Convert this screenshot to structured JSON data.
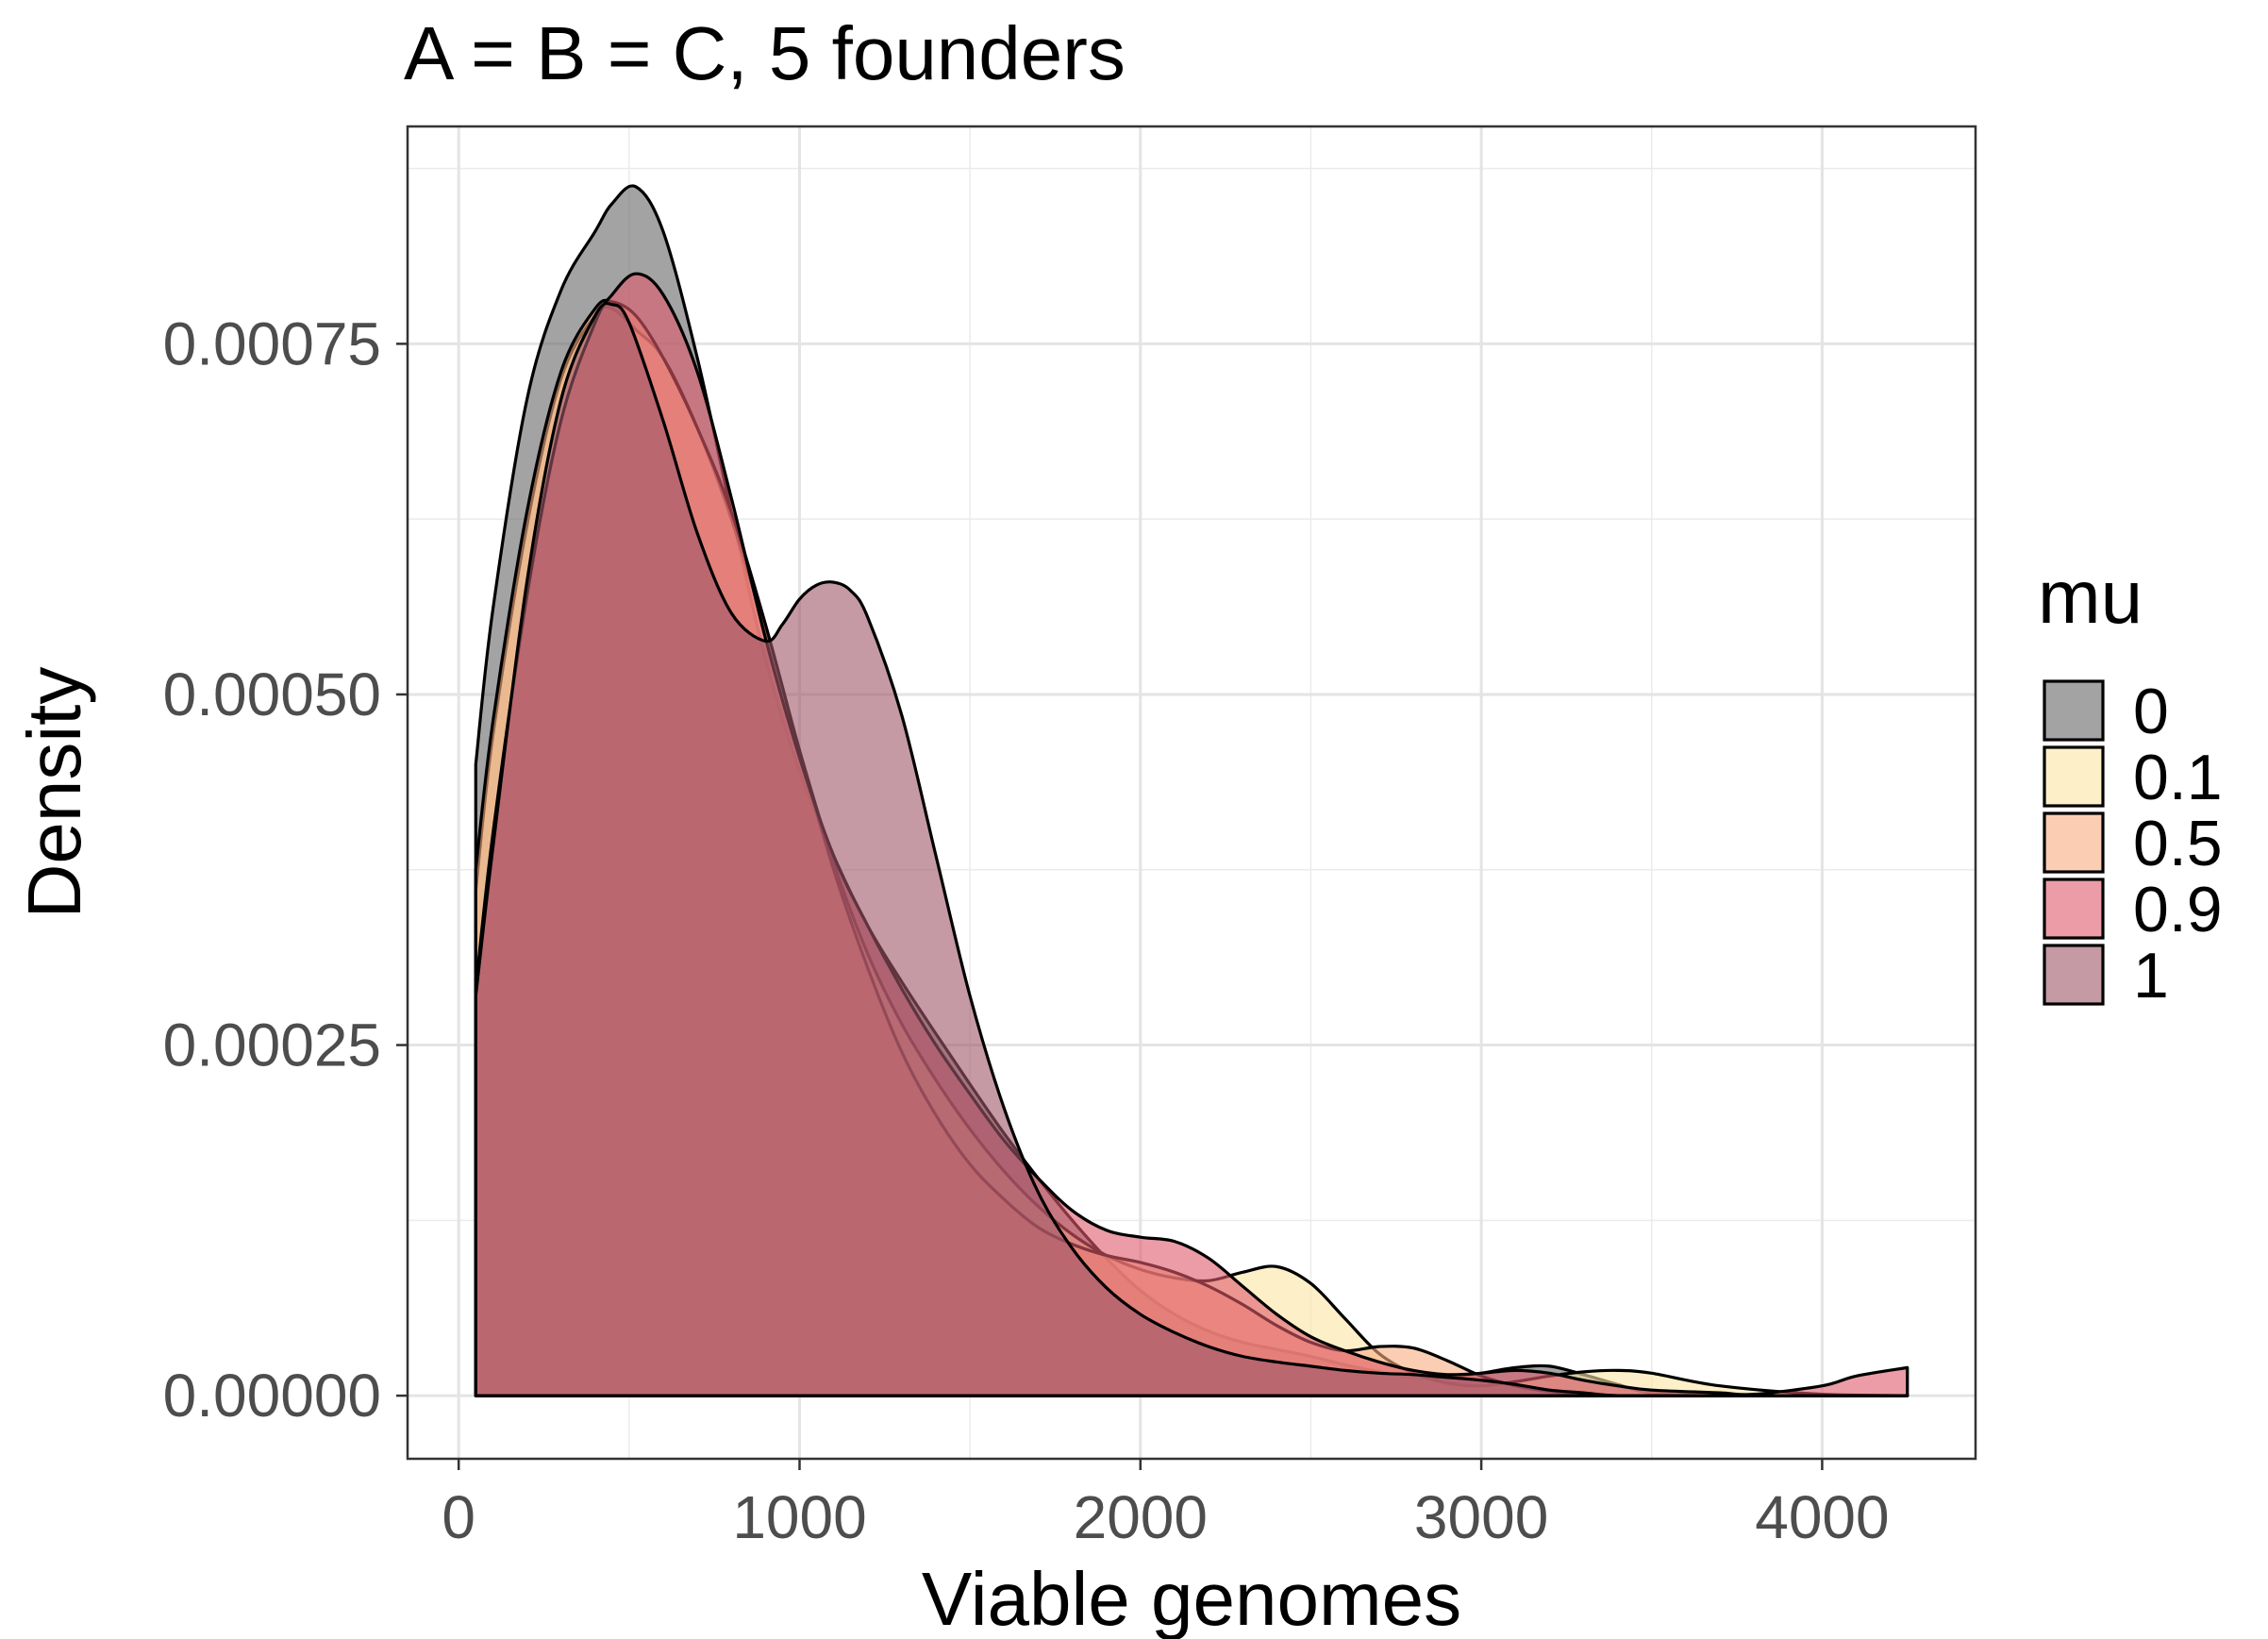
{
  "chart_data": {
    "type": "area",
    "title": "A = B = C, 5 founders",
    "xlabel": "Viable genomes",
    "ylabel": "Density",
    "xlim": [
      -150,
      4450
    ],
    "ylim": [
      -4.5e-05,
      0.000905
    ],
    "x_ticks": [
      {
        "value": 0,
        "label": "0"
      },
      {
        "value": 1000,
        "label": "1000"
      },
      {
        "value": 2000,
        "label": "2000"
      },
      {
        "value": 3000,
        "label": "3000"
      },
      {
        "value": 4000,
        "label": "4000"
      }
    ],
    "x_minor": [
      500,
      1500,
      2500,
      3500
    ],
    "y_ticks": [
      {
        "value": 0,
        "label": "0.00000"
      },
      {
        "value": 0.00025,
        "label": "0.00025"
      },
      {
        "value": 0.0005,
        "label": "0.00050"
      },
      {
        "value": 0.00075,
        "label": "0.00075"
      }
    ],
    "y_minor": [
      0.000125,
      0.000375,
      0.000625,
      0.000875
    ],
    "grid": true,
    "legend": {
      "title": "mu",
      "position": "right"
    },
    "series": [
      {
        "name": "0",
        "color": "#666666",
        "x": [
          50,
          100,
          200,
          300,
          400,
          450,
          520,
          600,
          700,
          800,
          900,
          1000,
          1100,
          1200,
          1300,
          1400,
          1500,
          1600,
          1700,
          1800,
          1900,
          2000,
          2100,
          2200,
          2300,
          2400,
          2500,
          2600,
          2700,
          2800,
          2900,
          3000,
          3100,
          3200,
          3300,
          3400,
          3500,
          3700,
          4000,
          4250
        ],
        "values": [
          0.00045,
          0.00056,
          0.00071,
          0.000788,
          0.00083,
          0.00085,
          0.000862,
          0.00083,
          0.00074,
          0.00063,
          0.000525,
          0.000445,
          0.000385,
          0.000335,
          0.000295,
          0.000258,
          0.000222,
          0.000187,
          0.000155,
          0.000125,
          9.8e-05,
          7.5e-05,
          5.8e-05,
          4.6e-05,
          3.8e-05,
          3.3e-05,
          2.8e-05,
          2.2e-05,
          1.7e-05,
          1.3e-05,
          1.3e-05,
          1.6e-05,
          2e-05,
          2.1e-05,
          1.5e-05,
          8e-06,
          2e-06,
          0.0,
          0.0,
          0.0
        ]
      },
      {
        "name": "0.1",
        "color": "#fbe6a3",
        "x": [
          50,
          100,
          200,
          300,
          400,
          450,
          520,
          600,
          700,
          800,
          900,
          1000,
          1100,
          1200,
          1300,
          1400,
          1500,
          1600,
          1700,
          1800,
          1900,
          2000,
          2100,
          2200,
          2300,
          2400,
          2500,
          2600,
          2700,
          2800,
          2900,
          3000,
          3100,
          3200,
          3300,
          3400,
          3500,
          3700,
          4000,
          4250
        ],
        "values": [
          0.00036,
          0.00047,
          0.00062,
          0.000725,
          0.00077,
          0.000775,
          0.00076,
          0.00074,
          0.00069,
          0.000625,
          0.000545,
          0.00046,
          0.00038,
          0.000315,
          0.000265,
          0.000225,
          0.00019,
          0.00016,
          0.000135,
          0.000115,
          0.0001,
          9e-05,
          8.4e-05,
          8.2e-05,
          8.8e-05,
          9.2e-05,
          8e-05,
          5.5e-05,
          3e-05,
          1.6e-05,
          9e-06,
          7e-06,
          1e-05,
          1.4e-05,
          1.7e-05,
          1.8e-05,
          1.6e-05,
          7e-06,
          1e-06,
          0.0
        ]
      },
      {
        "name": "0.5",
        "color": "#f9ad82",
        "x": [
          50,
          100,
          200,
          300,
          400,
          450,
          520,
          600,
          700,
          800,
          900,
          1000,
          1100,
          1200,
          1300,
          1400,
          1500,
          1600,
          1700,
          1800,
          1900,
          2000,
          2100,
          2200,
          2300,
          2400,
          2500,
          2600,
          2700,
          2800,
          2900,
          3000,
          3100,
          3200,
          3300,
          3400,
          3500,
          3700,
          4000,
          4250
        ],
        "values": [
          0.000375,
          0.00048,
          0.00063,
          0.00073,
          0.000775,
          0.00078,
          0.00077,
          0.00074,
          0.00069,
          0.00063,
          0.00055,
          0.00046,
          0.000375,
          0.000305,
          0.000245,
          0.0002,
          0.000165,
          0.00014,
          0.00012,
          0.000108,
          0.0001,
          9.5e-05,
          8.8e-05,
          7.8e-05,
          6.5e-05,
          5e-05,
          3.8e-05,
          3.2e-05,
          3.5e-05,
          3.4e-05,
          2.5e-05,
          1.4e-05,
          7e-06,
          3e-06,
          1e-06,
          0.0,
          0.0,
          0.0,
          0.0,
          0.0
        ]
      },
      {
        "name": "0.9",
        "color": "#e05a6a",
        "x": [
          50,
          100,
          200,
          300,
          400,
          450,
          520,
          600,
          700,
          800,
          900,
          1000,
          1100,
          1200,
          1300,
          1400,
          1500,
          1600,
          1700,
          1800,
          1900,
          2000,
          2100,
          2200,
          2300,
          2400,
          2500,
          2600,
          2700,
          2800,
          2900,
          3000,
          3100,
          3200,
          3300,
          3400,
          3500,
          3700,
          3800,
          4000,
          4100,
          4250
        ],
        "values": [
          0.00029,
          0.0004,
          0.00057,
          0.000695,
          0.000765,
          0.000785,
          0.0008,
          0.000785,
          0.00073,
          0.00064,
          0.00054,
          0.000455,
          0.000385,
          0.000335,
          0.00029,
          0.00025,
          0.000215,
          0.000182,
          0.000155,
          0.000132,
          0.000118,
          0.000113,
          0.00011,
          9.8e-05,
          7.8e-05,
          5.8e-05,
          4.2e-05,
          3.2e-05,
          2.4e-05,
          1.8e-05,
          1.5e-05,
          1.6e-05,
          1.8e-05,
          1.6e-05,
          1.1e-05,
          7e-06,
          4e-06,
          2e-06,
          1e-06,
          7e-06,
          1.4e-05,
          2e-05
        ]
      },
      {
        "name": "1",
        "color": "#9e5669",
        "x": [
          50,
          100,
          200,
          300,
          400,
          450,
          500,
          600,
          700,
          800,
          900,
          950,
          1000,
          1050,
          1100,
          1150,
          1200,
          1300,
          1400,
          1500,
          1600,
          1700,
          1800,
          1900,
          2000,
          2100,
          2200,
          2300,
          2400,
          2500,
          2600,
          2700,
          2800,
          2900,
          3000,
          3100,
          3200,
          3300,
          3400,
          3600,
          4000,
          4250
        ],
        "values": [
          0.000285,
          0.00039,
          0.00058,
          0.00071,
          0.00077,
          0.000778,
          0.000765,
          0.000695,
          0.000615,
          0.000558,
          0.000538,
          0.00055,
          0.000568,
          0.000578,
          0.00058,
          0.000574,
          0.000555,
          0.000485,
          0.000385,
          0.000285,
          0.000205,
          0.000145,
          0.000105,
          7.7e-05,
          5.8e-05,
          4.5e-05,
          3.5e-05,
          2.8e-05,
          2.4e-05,
          2.1e-05,
          1.8e-05,
          1.6e-05,
          1.5e-05,
          1.3e-05,
          1.1e-05,
          8e-06,
          4e-06,
          2e-06,
          0.0,
          0.0,
          0.0,
          0.0
        ]
      }
    ]
  }
}
